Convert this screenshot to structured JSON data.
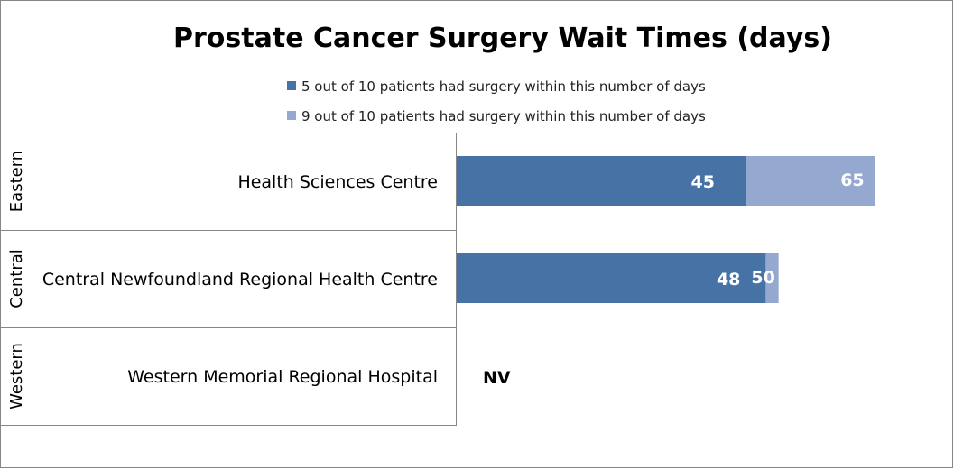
{
  "chart_data": {
    "type": "bar",
    "orientation": "horizontal",
    "title": "Prostate Cancer Surgery Wait Times (days)",
    "categories": [
      "Health Sciences Centre",
      "Central Newfoundland Regional Health Centre",
      "Western Memorial Regional Hospital"
    ],
    "regions": [
      "Eastern",
      "Central",
      "Western"
    ],
    "series": [
      {
        "name": "5 out of 10 patients had surgery within this number of days",
        "color": "#4672A6",
        "values": [
          45,
          48,
          null
        ]
      },
      {
        "name": "9 out of 10 patients had surgery within this number of days",
        "color": "#95A8D0",
        "values": [
          65,
          50,
          null
        ]
      }
    ],
    "value_labels": [
      [
        "45",
        "65"
      ],
      [
        "48",
        "50"
      ],
      [
        "NV"
      ]
    ],
    "xlim": [
      0,
      75
    ],
    "grid": false,
    "legend_position": "top"
  }
}
